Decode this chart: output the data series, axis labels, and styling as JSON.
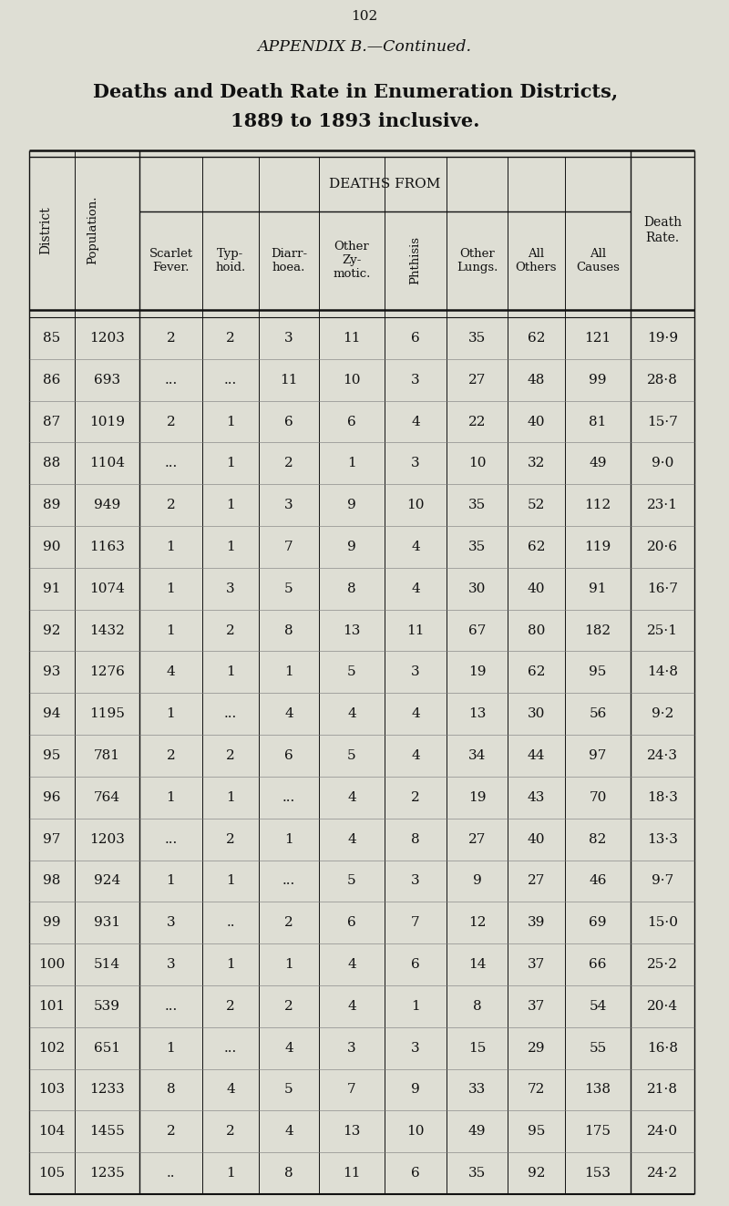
{
  "page_number": "102",
  "appendix_title": "APPENDIX B.—Continued.",
  "table_title_line1": "Deaths and Death Rate in Enumeration Districts,",
  "table_title_line2": "1889 to 1893 inclusive.",
  "bg_color": "#deded4",
  "col_headers_top": "DEATHS FROM",
  "rows": [
    [
      "85",
      "1203",
      "2",
      "2",
      "3",
      "11",
      "6",
      "35",
      "62",
      "121",
      "19·9"
    ],
    [
      "86",
      "693",
      "...",
      "...",
      "11",
      "10",
      "3",
      "27",
      "48",
      "99",
      "28·8"
    ],
    [
      "87",
      "1019",
      "2",
      "1",
      "6",
      "6",
      "4",
      "22",
      "40",
      "81",
      "15·7"
    ],
    [
      "88",
      "1104",
      "...",
      "1",
      "2",
      "1",
      "3",
      "10",
      "32",
      "49",
      "9·0"
    ],
    [
      "89",
      "949",
      "2",
      "1",
      "3",
      "9",
      "10",
      "35",
      "52",
      "112",
      "23·1"
    ],
    [
      "90",
      "1163",
      "1",
      "1",
      "7",
      "9",
      "4",
      "35",
      "62",
      "119",
      "20·6"
    ],
    [
      "91",
      "1074",
      "1",
      "3",
      "5",
      "8",
      "4",
      "30",
      "40",
      "91",
      "16·7"
    ],
    [
      "92",
      "1432",
      "1",
      "2",
      "8",
      "13",
      "11",
      "67",
      "80",
      "182",
      "25·1"
    ],
    [
      "93",
      "1276",
      "4",
      "1",
      "1",
      "5",
      "3",
      "19",
      "62",
      "95",
      "14·8"
    ],
    [
      "94",
      "1195",
      "1",
      "...",
      "4",
      "4",
      "4",
      "13",
      "30",
      "56",
      "9·2"
    ],
    [
      "95",
      "781",
      "2",
      "2",
      "6",
      "5",
      "4",
      "34",
      "44",
      "97",
      "24·3"
    ],
    [
      "96",
      "764",
      "1",
      "1",
      "...",
      "4",
      "2",
      "19",
      "43",
      "70",
      "18·3"
    ],
    [
      "97",
      "1203",
      "...",
      "2",
      "1",
      "4",
      "8",
      "27",
      "40",
      "82",
      "13·3"
    ],
    [
      "98",
      "924",
      "1",
      "1",
      "...",
      "5",
      "3",
      "9",
      "27",
      "46",
      "9·7"
    ],
    [
      "99",
      "931",
      "3",
      "..",
      "2",
      "6",
      "7",
      "12",
      "39",
      "69",
      "15·0"
    ],
    [
      "100",
      "514",
      "3",
      "1",
      "1",
      "4",
      "6",
      "14",
      "37",
      "66",
      "25·2"
    ],
    [
      "101",
      "539",
      "...",
      "2",
      "2",
      "4",
      "1",
      "8",
      "37",
      "54",
      "20·4"
    ],
    [
      "102",
      "651",
      "1",
      "...",
      "4",
      "3",
      "3",
      "15",
      "29",
      "55",
      "16·8"
    ],
    [
      "103",
      "1233",
      "8",
      "4",
      "5",
      "7",
      "9",
      "33",
      "72",
      "138",
      "21·8"
    ],
    [
      "104",
      "1455",
      "2",
      "2",
      "4",
      "13",
      "10",
      "49",
      "95",
      "175",
      "24·0"
    ],
    [
      "105",
      "1235",
      "..",
      "1",
      "8",
      "11",
      "6",
      "35",
      "92",
      "153",
      "24·2"
    ]
  ]
}
